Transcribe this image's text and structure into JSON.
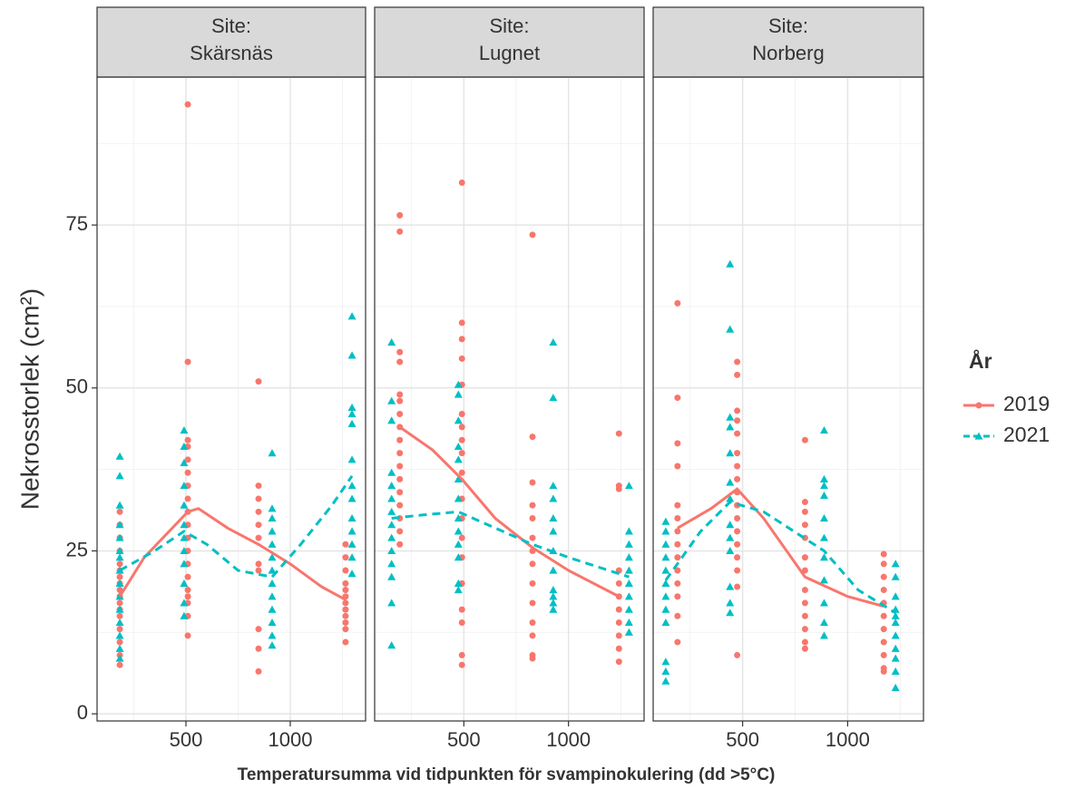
{
  "chart_data": {
    "type": "scatter",
    "xlabel": "Temperatursumma vid tidpunkten för svampinokulering (dd >5°C)",
    "ylabel": "Nekrosstorlek (cm²)",
    "legend_title": "År",
    "legend_position": "right",
    "grid": true,
    "xlim": [
      74,
      1361
    ],
    "ylim": [
      -1.1,
      97.7
    ],
    "xticks": [
      500,
      1000
    ],
    "yticks": [
      0,
      25,
      50,
      75
    ],
    "xminor": [
      250,
      750,
      1250
    ],
    "yminor": [
      12.5,
      37.5,
      62.5,
      87.5
    ],
    "series": [
      {
        "name": "2019",
        "color": "#f8766d",
        "marker": "circle",
        "line": "solid"
      },
      {
        "name": "2021",
        "color": "#00bfc4",
        "marker": "triangle",
        "line": "dashed"
      }
    ],
    "panels": [
      {
        "strip": [
          "Site:",
          "Skärsnäs"
        ],
        "series": [
          {
            "groups": [
              {
                "x": 183,
                "values": [
                  31,
                  29,
                  27,
                  25,
                  23,
                  22,
                  21,
                  20,
                  19,
                  18,
                  17,
                  16,
                  15,
                  13,
                  11,
                  9,
                  7.5
                ]
              },
              {
                "x": 509,
                "values": [
                  93.5,
                  54,
                  42,
                  41,
                  39,
                  37,
                  35,
                  33,
                  31,
                  29,
                  27,
                  25,
                  23,
                  21,
                  19,
                  18,
                  17,
                  15,
                  12
                ]
              },
              {
                "x": 848,
                "values": [
                  51,
                  35,
                  33,
                  31,
                  29,
                  27,
                  23,
                  22,
                  13,
                  10,
                  6.5
                ]
              },
              {
                "x": 1265,
                "values": [
                  26,
                  24,
                  22,
                  20,
                  19,
                  18,
                  17,
                  16,
                  15,
                  14,
                  13,
                  11
                ]
              }
            ],
            "trend": {
              "x": [
                183,
                300,
                509,
                560,
                700,
                848,
                1000,
                1150,
                1265
              ],
              "values": [
                18,
                24,
                31,
                31.5,
                28.5,
                26,
                23,
                19.5,
                17.5
              ]
            }
          },
          {
            "groups": [
              {
                "x": 183,
                "values": [
                  39.5,
                  36.5,
                  32,
                  29,
                  27,
                  25,
                  24,
                  22,
                  20,
                  18,
                  16,
                  14,
                  12,
                  10,
                  8.5
                ]
              },
              {
                "x": 491,
                "values": [
                  43.5,
                  41,
                  38.5,
                  35,
                  32,
                  29,
                  27,
                  25,
                  23,
                  20,
                  17,
                  15
                ]
              },
              {
                "x": 913,
                "values": [
                  40,
                  31.5,
                  30,
                  28,
                  26,
                  24,
                  22,
                  20,
                  18,
                  16,
                  14,
                  12,
                  10.5
                ]
              },
              {
                "x": 1296,
                "values": [
                  61,
                  55,
                  47,
                  46,
                  44.5,
                  39,
                  35,
                  33,
                  30,
                  28,
                  26,
                  24,
                  21.5
                ]
              }
            ],
            "trend": {
              "x": [
                183,
                350,
                491,
                600,
                750,
                913,
                1050,
                1200,
                1296
              ],
              "values": [
                22,
                25,
                28,
                26,
                22,
                21,
                26,
                32,
                36.5
              ]
            }
          }
        ]
      },
      {
        "strip": [
          "Site:",
          "Lugnet"
        ],
        "series": [
          {
            "groups": [
              {
                "x": 194,
                "values": [
                  76.5,
                  74,
                  55.5,
                  54,
                  49,
                  48,
                  46,
                  44,
                  42,
                  40,
                  38,
                  36,
                  34,
                  32,
                  30,
                  28,
                  26
                ]
              },
              {
                "x": 491,
                "values": [
                  81.5,
                  60,
                  57.5,
                  54.5,
                  50.5,
                  46,
                  44,
                  42,
                  40,
                  37,
                  33,
                  30,
                  27,
                  24,
                  20,
                  16,
                  14,
                  9,
                  7.5
                ]
              },
              {
                "x": 828,
                "values": [
                  73.5,
                  42.5,
                  35.5,
                  32,
                  30,
                  27,
                  25,
                  23,
                  20,
                  17,
                  14,
                  12,
                  9,
                  8.5
                ]
              },
              {
                "x": 1241,
                "values": [
                  43,
                  35,
                  34.5,
                  22,
                  20,
                  18,
                  16,
                  14,
                  12,
                  10,
                  8
                ]
              }
            ],
            "trend": {
              "x": [
                194,
                350,
                491,
                650,
                828,
                1000,
                1241
              ],
              "values": [
                44,
                40.5,
                36,
                30,
                25.5,
                22,
                18
              ]
            }
          },
          {
            "groups": [
              {
                "x": 155,
                "values": [
                  57,
                  48,
                  45,
                  37,
                  35,
                  33,
                  31,
                  29,
                  27,
                  25,
                  23,
                  21,
                  17,
                  10.5
                ]
              },
              {
                "x": 474,
                "values": [
                  50.5,
                  49,
                  45,
                  41,
                  39,
                  36,
                  33,
                  30,
                  28,
                  26,
                  24,
                  20,
                  19
                ]
              },
              {
                "x": 927,
                "values": [
                  57,
                  48.5,
                  35,
                  33,
                  30,
                  28,
                  25,
                  22,
                  19,
                  18,
                  17,
                  16
                ]
              },
              {
                "x": 1289,
                "values": [
                  35,
                  28,
                  26,
                  24,
                  22,
                  20,
                  18,
                  16,
                  14,
                  12.5
                ]
              }
            ],
            "trend": {
              "x": [
                155,
                300,
                474,
                650,
                828,
                1000,
                1289
              ],
              "values": [
                30,
                30.5,
                31,
                28.5,
                26,
                24,
                21
              ]
            }
          }
        ]
      },
      {
        "strip": [
          "Site:",
          "Norberg"
        ],
        "series": [
          {
            "groups": [
              {
                "x": 190,
                "values": [
                  63,
                  48.5,
                  41.5,
                  38,
                  32,
                  30,
                  28,
                  26,
                  24,
                  22,
                  20,
                  18,
                  15,
                  11
                ]
              },
              {
                "x": 474,
                "values": [
                  54,
                  52,
                  46.5,
                  45,
                  43,
                  40,
                  38,
                  36,
                  34,
                  32,
                  30,
                  28,
                  26,
                  24,
                  22,
                  19.5,
                  9
                ]
              },
              {
                "x": 797,
                "values": [
                  42,
                  32.5,
                  31,
                  29,
                  27,
                  24,
                  22,
                  19,
                  17,
                  15,
                  13,
                  11,
                  10
                ]
              },
              {
                "x": 1172,
                "values": [
                  24.5,
                  23,
                  21,
                  19,
                  17,
                  15,
                  13,
                  11,
                  9,
                  7,
                  6.5
                ]
              }
            ],
            "trend": {
              "x": [
                190,
                350,
                474,
                600,
                797,
                1000,
                1172
              ],
              "values": [
                28.5,
                31.5,
                34.5,
                30,
                21,
                18,
                16.5
              ]
            }
          },
          {
            "groups": [
              {
                "x": 134,
                "values": [
                  29.5,
                  28,
                  26,
                  24,
                  22,
                  20,
                  18,
                  16,
                  14,
                  8,
                  6.5,
                  5
                ]
              },
              {
                "x": 440,
                "values": [
                  69,
                  59,
                  45.5,
                  44,
                  40,
                  35.5,
                  33,
                  29,
                  27,
                  25,
                  19.5,
                  17,
                  15.5
                ]
              },
              {
                "x": 888,
                "values": [
                  43.5,
                  36,
                  35,
                  33.5,
                  30,
                  27,
                  24,
                  20.5,
                  17,
                  14,
                  12
                ]
              },
              {
                "x": 1228,
                "values": [
                  23,
                  21,
                  18,
                  16,
                  15,
                  14,
                  12,
                  10,
                  8.5,
                  6.5,
                  4
                ]
              }
            ],
            "trend": {
              "x": [
                134,
                300,
                440,
                600,
                888,
                1050,
                1228
              ],
              "values": [
                20.5,
                28,
                32.5,
                31,
                25,
                19,
                15.5
              ]
            }
          }
        ]
      }
    ]
  }
}
